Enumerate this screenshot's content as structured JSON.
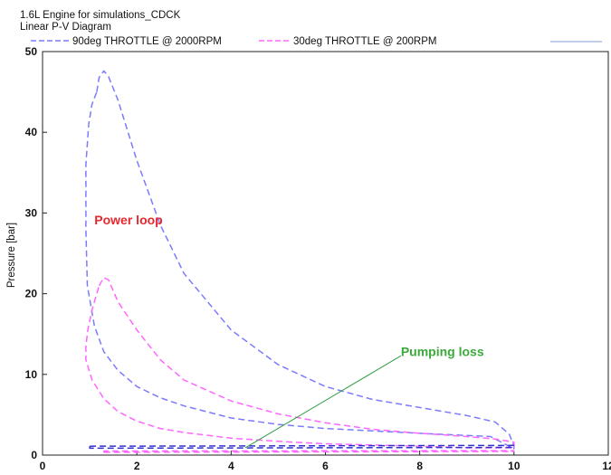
{
  "header": {
    "line1": "1.6L Engine for simulations_CDCK",
    "line2": "Linear P-V Diagram"
  },
  "legend": [
    {
      "label": "90deg THROTTLE @ 2000RPM",
      "color": "#7b7bff"
    },
    {
      "label": "30deg THROTTLE @ 200RPM",
      "color": "#ff66ff"
    }
  ],
  "chart_data": {
    "type": "line",
    "title": "Linear P-V Diagram",
    "xlabel": "",
    "ylabel": "Pressure  [bar]",
    "xlim": [
      0,
      12
    ],
    "ylim": [
      0,
      50
    ],
    "x_ticks": [
      "0",
      "2",
      "4",
      "6",
      "8",
      "10",
      "12"
    ],
    "y_ticks": [
      "0",
      "10",
      "20",
      "30",
      "40",
      "50"
    ],
    "grid": false,
    "legend_position": "top",
    "series": [
      {
        "name": "90deg THROTTLE @ 2000RPM",
        "color": "#7b7bff",
        "style": "dashed",
        "x": [
          1.15,
          1.2,
          1.3,
          1.4,
          1.6,
          2.0,
          2.5,
          3.0,
          4.0,
          5.0,
          6.0,
          7.0,
          8.0,
          9.0,
          9.6,
          9.9,
          10.0,
          10.0,
          9.5,
          8.0,
          6.0,
          5.0,
          4.0,
          3.0,
          2.5,
          2.0,
          1.6,
          1.3,
          1.1,
          0.95,
          0.92,
          0.92,
          0.98,
          1.05,
          1.15
        ],
        "y": [
          45.0,
          46.8,
          47.6,
          46.9,
          44.0,
          36.5,
          28.5,
          22.5,
          15.5,
          11.2,
          8.5,
          6.9,
          5.9,
          4.9,
          4.1,
          2.6,
          1.1,
          0.8,
          2.3,
          2.7,
          3.3,
          3.8,
          4.6,
          6.1,
          7.1,
          8.5,
          10.5,
          12.8,
          16.0,
          21.0,
          28.0,
          36.0,
          41.0,
          43.5,
          45.0
        ]
      },
      {
        "name": "30deg THROTTLE @ 200RPM",
        "color": "#ff66ff",
        "style": "dashed",
        "x": [
          1.2,
          1.3,
          1.4,
          1.6,
          2.0,
          2.5,
          3.0,
          4.0,
          5.0,
          6.0,
          7.0,
          8.0,
          9.0,
          9.6,
          10.0,
          10.0,
          9.0,
          8.0,
          6.0,
          5.0,
          4.0,
          3.0,
          2.5,
          2.0,
          1.6,
          1.3,
          1.05,
          0.92,
          0.92,
          0.96,
          1.05,
          1.2
        ],
        "y": [
          21.0,
          22.0,
          21.7,
          19.0,
          15.5,
          11.8,
          9.3,
          6.7,
          5.1,
          4.0,
          3.2,
          2.7,
          2.3,
          2.0,
          1.6,
          0.9,
          0.9,
          1.1,
          1.4,
          1.7,
          2.1,
          2.8,
          3.3,
          4.2,
          5.4,
          7.0,
          9.3,
          11.8,
          13.5,
          15.5,
          18.0,
          21.0
        ]
      },
      {
        "name": "",
        "color": "#3333cc",
        "style": "dashed",
        "x": [
          1.0,
          10.0,
          10.0,
          1.0,
          1.0
        ],
        "y": [
          1.1,
          1.2,
          0.95,
          0.85,
          1.1
        ]
      },
      {
        "name": "",
        "color": "#ff66ff",
        "style": "dashed",
        "x": [
          1.3,
          10.0,
          10.0,
          1.3,
          1.3
        ],
        "y": [
          0.35,
          0.45,
          0.55,
          0.5,
          0.35
        ]
      }
    ],
    "annotations": [
      {
        "text": "Power loop",
        "color": "#e8282e",
        "x": 1.1,
        "y": 28.6
      },
      {
        "text": "Pumping loss",
        "color": "#3aaa3a",
        "x": 7.6,
        "y": 12.3
      }
    ],
    "annotation_line": {
      "color": "#2f9e44",
      "x1": 4.3,
      "y1": 0.9,
      "x2": 7.6,
      "y2": 12.3
    }
  }
}
